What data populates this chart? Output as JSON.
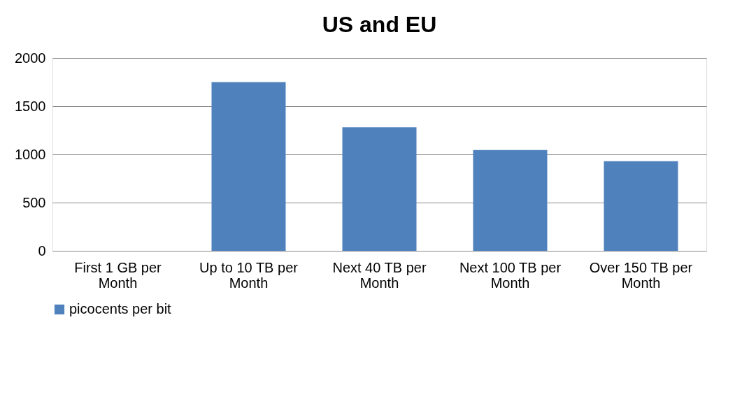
{
  "chart_data": {
    "type": "bar",
    "title": "US and EU",
    "categories": [
      "First 1 GB per Month",
      "Up to 10 TB per Month",
      "Next 40 TB per Month",
      "Next 100 TB per Month",
      "Over 150 TB per Month"
    ],
    "series": [
      {
        "name": "picocents per bit",
        "color": "#4f81bd",
        "values": [
          0,
          1750,
          1280,
          1045,
          930
        ]
      }
    ],
    "ylim": [
      0,
      2000
    ],
    "yticks": [
      0,
      500,
      1000,
      1500,
      2000
    ],
    "grid": "y",
    "legend": "bottom"
  }
}
